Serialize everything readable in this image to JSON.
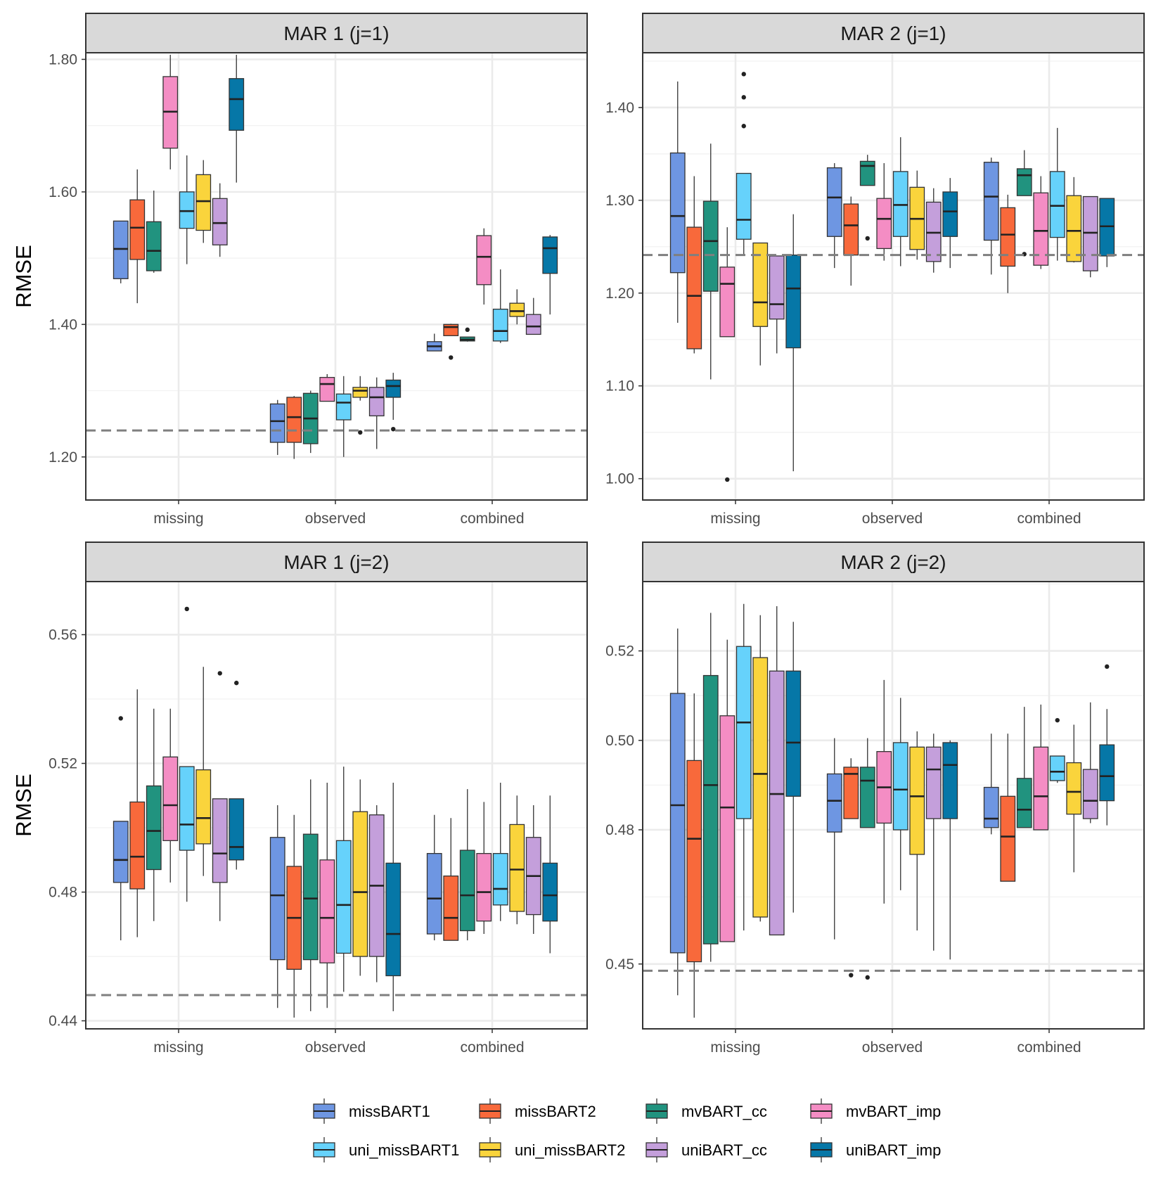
{
  "chart_data": {
    "type": "boxplot",
    "ylabel": "RMSE",
    "categories": [
      "missing",
      "observed",
      "combined"
    ],
    "legend_position": "bottom",
    "series": [
      {
        "name": "missBART1",
        "color": "#6e96e2"
      },
      {
        "name": "missBART2",
        "color": "#f8693b"
      },
      {
        "name": "mvBART_cc",
        "color": "#21937f"
      },
      {
        "name": "mvBART_imp",
        "color": "#f48dc4"
      },
      {
        "name": "uni_missBART1",
        "color": "#66d2fb"
      },
      {
        "name": "uni_missBART2",
        "color": "#fad43c"
      },
      {
        "name": "uniBART_cc",
        "color": "#c49fdb"
      },
      {
        "name": "uniBART_imp",
        "color": "#0677a7"
      }
    ],
    "panels": [
      {
        "title": "MAR 1 (j=1)",
        "ylim": [
          1.135,
          1.81
        ],
        "yticks": [
          1.2,
          1.4,
          1.6,
          1.8
        ],
        "ytick_labels": [
          "1.20",
          "1.40",
          "1.60",
          "1.80"
        ],
        "reference": 1.24,
        "boxes": [
          [
            [
              1.462,
              1.469,
              1.514,
              1.556,
              1.556,
              []
            ],
            [
              1.432,
              1.498,
              1.546,
              1.588,
              1.634,
              []
            ],
            [
              1.478,
              1.481,
              1.511,
              1.555,
              1.602,
              []
            ],
            [
              1.634,
              1.666,
              1.721,
              1.774,
              1.807,
              []
            ],
            [
              1.491,
              1.545,
              1.571,
              1.6,
              1.655,
              []
            ],
            [
              1.523,
              1.542,
              1.586,
              1.626,
              1.648,
              []
            ],
            [
              1.502,
              1.52,
              1.553,
              1.59,
              1.613,
              []
            ],
            [
              1.614,
              1.693,
              1.74,
              1.771,
              1.807,
              []
            ]
          ],
          [
            [
              1.203,
              1.222,
              1.254,
              1.28,
              1.286,
              []
            ],
            [
              1.197,
              1.222,
              1.26,
              1.29,
              1.292,
              []
            ],
            [
              1.206,
              1.22,
              1.258,
              1.296,
              1.3,
              []
            ],
            [
              1.284,
              1.284,
              1.31,
              1.32,
              1.325,
              []
            ],
            [
              1.2,
              1.256,
              1.282,
              1.295,
              1.322,
              []
            ],
            [
              1.285,
              1.29,
              1.3,
              1.305,
              1.322,
              [
                1.237
              ]
            ],
            [
              1.212,
              1.262,
              1.29,
              1.305,
              1.32,
              []
            ],
            [
              1.256,
              1.29,
              1.307,
              1.316,
              1.327,
              [
                1.242
              ]
            ]
          ],
          [
            [
              1.36,
              1.36,
              1.367,
              1.374,
              1.386,
              []
            ],
            [
              1.383,
              1.383,
              1.396,
              1.4,
              1.401,
              [
                1.35
              ]
            ],
            [
              1.374,
              1.375,
              1.377,
              1.381,
              1.381,
              [
                1.392
              ]
            ],
            [
              1.43,
              1.46,
              1.502,
              1.534,
              1.545,
              []
            ],
            [
              1.372,
              1.375,
              1.39,
              1.423,
              1.483,
              []
            ],
            [
              1.4,
              1.412,
              1.42,
              1.432,
              1.453,
              []
            ],
            [
              1.385,
              1.385,
              1.397,
              1.415,
              1.44,
              []
            ],
            [
              1.415,
              1.477,
              1.515,
              1.532,
              1.535,
              []
            ]
          ]
        ]
      },
      {
        "title": "MAR 2 (j=1)",
        "ylim": [
          0.977,
          1.459
        ],
        "yticks": [
          1.0,
          1.1,
          1.2,
          1.3,
          1.4
        ],
        "ytick_labels": [
          "1.00",
          "1.10",
          "1.20",
          "1.30",
          "1.40"
        ],
        "reference": 1.241,
        "boxes": [
          [
            [
              1.168,
              1.222,
              1.283,
              1.351,
              1.428,
              []
            ],
            [
              1.135,
              1.14,
              1.197,
              1.271,
              1.326,
              []
            ],
            [
              1.107,
              1.202,
              1.256,
              1.299,
              1.361,
              []
            ],
            [
              1.153,
              1.153,
              1.21,
              1.228,
              1.271,
              [
                0.999
              ]
            ],
            [
              1.24,
              1.258,
              1.279,
              1.329,
              1.329,
              [
                1.436,
                1.411,
                1.38
              ]
            ],
            [
              1.122,
              1.164,
              1.19,
              1.254,
              1.254,
              []
            ],
            [
              1.135,
              1.172,
              1.188,
              1.24,
              1.24,
              []
            ],
            [
              1.008,
              1.141,
              1.205,
              1.241,
              1.285,
              []
            ]
          ],
          [
            [
              1.227,
              1.261,
              1.303,
              1.335,
              1.34,
              []
            ],
            [
              1.208,
              1.241,
              1.273,
              1.296,
              1.304,
              []
            ],
            [
              1.316,
              1.316,
              1.337,
              1.342,
              1.349,
              [
                1.259
              ]
            ],
            [
              1.235,
              1.248,
              1.28,
              1.302,
              1.34,
              []
            ],
            [
              1.229,
              1.261,
              1.295,
              1.331,
              1.368,
              []
            ],
            [
              1.236,
              1.247,
              1.28,
              1.314,
              1.332,
              []
            ],
            [
              1.222,
              1.234,
              1.265,
              1.298,
              1.313,
              []
            ],
            [
              1.227,
              1.261,
              1.288,
              1.309,
              1.324,
              []
            ]
          ],
          [
            [
              1.22,
              1.257,
              1.304,
              1.341,
              1.346,
              []
            ],
            [
              1.2,
              1.229,
              1.263,
              1.292,
              1.306,
              []
            ],
            [
              1.305,
              1.305,
              1.327,
              1.334,
              1.354,
              [
                1.242
              ]
            ],
            [
              1.226,
              1.23,
              1.267,
              1.308,
              1.326,
              []
            ],
            [
              1.235,
              1.26,
              1.294,
              1.331,
              1.378,
              []
            ],
            [
              1.233,
              1.234,
              1.267,
              1.305,
              1.325,
              []
            ],
            [
              1.217,
              1.224,
              1.265,
              1.304,
              1.304,
              []
            ],
            [
              1.228,
              1.24,
              1.272,
              1.302,
              1.302,
              []
            ]
          ]
        ]
      },
      {
        "title": "MAR 1 (j=2)",
        "ylim": [
          0.4375,
          0.5765
        ],
        "yticks": [
          0.44,
          0.48,
          0.52,
          0.56
        ],
        "ytick_labels": [
          "0.44",
          "0.48",
          "0.52",
          "0.56"
        ],
        "reference": 0.448,
        "boxes": [
          [
            [
              0.465,
              0.483,
              0.49,
              0.502,
              0.502,
              [
                0.534
              ]
            ],
            [
              0.466,
              0.481,
              0.491,
              0.508,
              0.543,
              []
            ],
            [
              0.471,
              0.487,
              0.499,
              0.513,
              0.537,
              []
            ],
            [
              0.483,
              0.496,
              0.507,
              0.522,
              0.537,
              []
            ],
            [
              0.477,
              0.493,
              0.501,
              0.519,
              0.519,
              [
                0.568
              ]
            ],
            [
              0.485,
              0.495,
              0.503,
              0.518,
              0.55,
              []
            ],
            [
              0.471,
              0.483,
              0.492,
              0.509,
              0.509,
              [
                0.548
              ]
            ],
            [
              0.487,
              0.49,
              0.494,
              0.509,
              0.509,
              [
                0.545
              ]
            ]
          ],
          [
            [
              0.444,
              0.459,
              0.479,
              0.497,
              0.507,
              []
            ],
            [
              0.441,
              0.456,
              0.472,
              0.488,
              0.504,
              []
            ],
            [
              0.443,
              0.459,
              0.478,
              0.498,
              0.515,
              []
            ],
            [
              0.444,
              0.458,
              0.472,
              0.49,
              0.514,
              []
            ],
            [
              0.449,
              0.461,
              0.476,
              0.496,
              0.519,
              []
            ],
            [
              0.454,
              0.46,
              0.48,
              0.505,
              0.515,
              []
            ],
            [
              0.452,
              0.46,
              0.482,
              0.504,
              0.507,
              []
            ],
            [
              0.443,
              0.454,
              0.467,
              0.489,
              0.514,
              []
            ]
          ],
          [
            [
              0.465,
              0.467,
              0.478,
              0.492,
              0.504,
              []
            ],
            [
              0.465,
              0.465,
              0.472,
              0.485,
              0.503,
              []
            ],
            [
              0.465,
              0.468,
              0.479,
              0.493,
              0.512,
              []
            ],
            [
              0.467,
              0.471,
              0.48,
              0.492,
              0.508,
              []
            ],
            [
              0.471,
              0.476,
              0.481,
              0.492,
              0.514,
              []
            ],
            [
              0.47,
              0.474,
              0.487,
              0.501,
              0.51,
              []
            ],
            [
              0.467,
              0.473,
              0.485,
              0.497,
              0.507,
              []
            ],
            [
              0.461,
              0.471,
              0.479,
              0.489,
              0.51,
              []
            ]
          ]
        ]
      },
      {
        "title": "MAR 2 (j=2)",
        "ylim": [
          0.4355,
          0.5355
        ],
        "yticks": [
          0.45,
          0.48,
          0.5,
          0.52
        ],
        "ytick_labels": [
          "0.45",
          "0.48",
          "0.50",
          "0.52"
        ],
        "reference": 0.4485,
        "boxes": [
          [
            [
              0.443,
              0.4525,
              0.4855,
              0.5105,
              0.525,
              []
            ],
            [
              0.438,
              0.4505,
              0.478,
              0.4955,
              0.5105,
              []
            ],
            [
              0.4505,
              0.4545,
              0.49,
              0.5145,
              0.5285,
              []
            ],
            [
              0.455,
              0.455,
              0.485,
              0.5055,
              0.5225,
              []
            ],
            [
              0.4575,
              0.4825,
              0.504,
              0.521,
              0.5305,
              []
            ],
            [
              0.4595,
              0.4605,
              0.4925,
              0.5185,
              0.528,
              []
            ],
            [
              0.4565,
              0.4565,
              0.488,
              0.5155,
              0.53,
              []
            ],
            [
              0.4615,
              0.4875,
              0.4995,
              0.5155,
              0.5265,
              []
            ]
          ],
          [
            [
              0.4555,
              0.4795,
              0.4865,
              0.4925,
              0.5005,
              []
            ],
            [
              0.4825,
              0.4825,
              0.4925,
              0.494,
              0.496,
              [
                0.4475
              ]
            ],
            [
              0.4805,
              0.4805,
              0.491,
              0.494,
              0.5005,
              [
                0.447
              ]
            ],
            [
              0.4635,
              0.4815,
              0.4895,
              0.4975,
              0.5135,
              []
            ],
            [
              0.4665,
              0.48,
              0.489,
              0.4995,
              0.5095,
              []
            ],
            [
              0.4575,
              0.4745,
              0.4875,
              0.4985,
              0.502,
              []
            ],
            [
              0.453,
              0.4825,
              0.4935,
              0.4985,
              0.5015,
              []
            ],
            [
              0.451,
              0.4825,
              0.4945,
              0.4995,
              0.5,
              []
            ]
          ],
          [
            [
              0.479,
              0.4805,
              0.4825,
              0.4895,
              0.5015,
              []
            ],
            [
              0.4685,
              0.4685,
              0.4785,
              0.4875,
              0.5015,
              []
            ],
            [
              0.4805,
              0.4805,
              0.4845,
              0.4915,
              0.5075,
              []
            ],
            [
              0.48,
              0.48,
              0.4875,
              0.4985,
              0.508,
              []
            ],
            [
              0.4905,
              0.491,
              0.493,
              0.4965,
              0.4965,
              [
                0.5045
              ]
            ],
            [
              0.4705,
              0.4835,
              0.4885,
              0.495,
              0.5035,
              []
            ],
            [
              0.4815,
              0.4825,
              0.4865,
              0.4935,
              0.5085,
              []
            ],
            [
              0.481,
              0.4865,
              0.492,
              0.499,
              0.507,
              [
                0.5165
              ]
            ]
          ]
        ]
      }
    ]
  }
}
